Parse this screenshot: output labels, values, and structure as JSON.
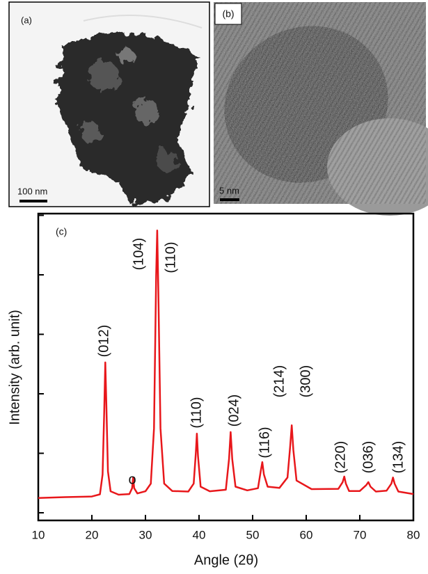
{
  "panels": [
    {
      "label": "(a)",
      "scale_bar": "100 nm"
    },
    {
      "label": "(b)",
      "scale_bar": "5 nm"
    }
  ],
  "chart_data": {
    "type": "line",
    "panel_label": "(c)",
    "xlabel": "Angle (2θ)",
    "ylabel": "Intensity (arb. unit)",
    "x": [
      10,
      15,
      20,
      21.5,
      22,
      22.3,
      22.5,
      22.7,
      23,
      23.5,
      25,
      27,
      27.5,
      27.7,
      27.9,
      28.5,
      30,
      31,
      31.6,
      32,
      32.2,
      32.4,
      32.8,
      33.5,
      35,
      38,
      39,
      39.4,
      39.6,
      39.8,
      40.3,
      42,
      45,
      45.6,
      45.9,
      46.2,
      46.8,
      49,
      51,
      51.5,
      51.8,
      52.1,
      52.8,
      55,
      56.5,
      57,
      57.3,
      57.6,
      58.2,
      61,
      66,
      66.8,
      67.1,
      67.4,
      68,
      70,
      71.2,
      71.6,
      72,
      73,
      75,
      75.9,
      76.2,
      76.5,
      77.2,
      80
    ],
    "values": [
      7.3,
      7.6,
      7.8,
      8.5,
      15,
      35,
      51.5,
      38,
      16,
      9.5,
      8.4,
      8.6,
      10.5,
      14,
      10.5,
      8.8,
      9.5,
      12,
      30,
      80,
      94.5,
      75,
      30,
      12,
      9.6,
      9.4,
      12,
      22,
      28.3,
      21,
      11,
      9.5,
      10,
      20,
      28.8,
      20,
      11,
      9.8,
      10.5,
      16,
      19,
      15,
      11,
      10.6,
      14,
      24,
      31,
      23,
      13,
      10.2,
      10.3,
      12.5,
      14.3,
      12,
      9.6,
      9.6,
      11.5,
      12.5,
      11,
      9.4,
      9.7,
      12,
      14,
      12,
      9.4,
      8.6
    ],
    "color": "#e8171b",
    "xlim": [
      10,
      80
    ],
    "xticks": [
      10,
      20,
      30,
      40,
      50,
      60,
      70,
      80
    ],
    "ylim": [
      0,
      100
    ],
    "annotations": [
      "(012)",
      "o",
      "(104)",
      "(110)",
      "(110)",
      "(024)",
      "(116)",
      "(214)",
      "(300)",
      "(220)",
      "(036)",
      "(134)"
    ]
  }
}
